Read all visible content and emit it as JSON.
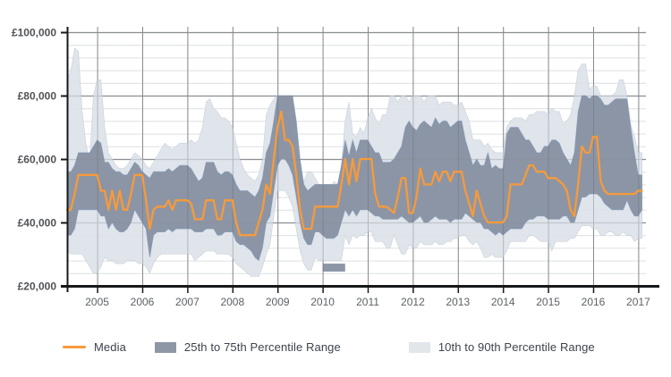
{
  "page": {
    "background": "#ffffff"
  },
  "chart": {
    "y_axis": {
      "tick_labels": [
        "£100,000",
        "£80,000",
        "£60,000",
        "£40,000",
        "£20,000"
      ],
      "tick_values_thousands": [
        100,
        80,
        60,
        40,
        20
      ],
      "minor_step_thousands": 4
    },
    "x_axis": {
      "tick_labels": [
        "2005",
        "2006",
        "2007",
        "2008",
        "2009",
        "2010",
        "2011",
        "2012",
        "2013",
        "2014",
        "2015",
        "2016",
        "2017"
      ]
    },
    "colors": {
      "median_line": "#f79a3b",
      "band_25_75": "#8790a1",
      "band_25_75_edge": "#6f94bd",
      "band_10_90": "#dde2e9",
      "grid_minor": "#dcdfe2",
      "grid_major": "#8c8f93",
      "grid_year": "#9a9ea3",
      "axis": "#17181a",
      "y_label": "#4f5357",
      "x_label": "#5d6166",
      "legend_text": "#3c434d"
    },
    "legend": {
      "items": [
        {
          "label": "Media",
          "swatch": "line",
          "color": "#f79a3b"
        },
        {
          "label": "25th to 75th Percentile Range",
          "swatch": "box",
          "color": "#8e97a6"
        },
        {
          "label": "10th to 90th Percentile Range",
          "swatch": "box",
          "color": "#e2e6eb"
        }
      ]
    }
  },
  "chart_data": {
    "type": "line",
    "title": "",
    "unit": "GBP thousands per annum",
    "frequency": "monthly",
    "start_month": "2004-05",
    "end_month": "2017-02",
    "ylim_thousands": [
      20,
      100
    ],
    "x_ticks": [
      2005,
      2006,
      2007,
      2008,
      2009,
      2010,
      2011,
      2012,
      2013,
      2014,
      2015,
      2016,
      2017
    ],
    "grid": "major and minor horizontal, yearly vertical",
    "legend_position": "bottom",
    "series": [
      {
        "name": "Media",
        "role": "median",
        "color": "#f79a3b",
        "values": [
          44,
          44,
          49,
          55,
          55,
          55,
          55,
          55,
          55,
          50,
          50,
          44,
          50,
          44,
          50,
          44,
          44,
          49,
          55,
          55,
          55,
          47,
          38,
          44,
          45,
          45,
          45,
          47,
          44,
          47,
          47,
          47,
          47,
          46,
          41,
          41,
          41,
          47,
          47,
          47,
          41,
          41,
          47,
          47,
          47,
          40,
          36,
          36,
          36,
          36,
          36,
          40,
          44,
          52,
          49,
          60,
          70,
          75,
          66,
          66,
          64,
          55,
          44,
          38,
          38,
          38,
          45,
          45,
          45,
          45,
          45,
          45,
          45,
          52,
          60,
          52,
          60,
          53,
          60,
          60,
          60,
          60,
          49,
          45,
          45,
          45,
          44,
          43,
          48,
          54,
          54,
          43,
          43,
          48,
          57,
          52,
          52,
          52,
          56,
          53,
          56,
          56,
          53,
          56,
          56,
          56,
          50,
          46,
          42,
          50,
          46,
          42,
          40,
          40,
          40,
          40,
          40,
          42,
          52,
          52,
          52,
          52,
          55,
          58,
          58,
          56,
          56,
          56,
          54,
          54,
          54,
          53,
          52,
          50,
          44,
          42,
          52,
          64,
          62,
          62,
          67,
          67,
          53,
          50,
          49,
          49,
          49,
          49,
          49,
          49,
          49,
          49,
          50,
          50
        ]
      },
      {
        "name": "25th Percentile",
        "role": "band_lower_25_75",
        "values": [
          36,
          36,
          38,
          44,
          44,
          44,
          44,
          44,
          44,
          42,
          42,
          38,
          40,
          38,
          37,
          37,
          38,
          40,
          44,
          42,
          40,
          38,
          29,
          36,
          37,
          37,
          37,
          38,
          37,
          38,
          38,
          38,
          38,
          38,
          37,
          37,
          37,
          38,
          38,
          38,
          36,
          36,
          37,
          37,
          37,
          34,
          33,
          33,
          32,
          31,
          29,
          28,
          32,
          40,
          42,
          50,
          58,
          60,
          60,
          58,
          55,
          48,
          40,
          35,
          33,
          33,
          37,
          37,
          36,
          35,
          35,
          35,
          36,
          40,
          44,
          42,
          44,
          42,
          44,
          44,
          44,
          43,
          42,
          42,
          41,
          41,
          41,
          41,
          41,
          42,
          41,
          40,
          40,
          41,
          42,
          40,
          40,
          41,
          42,
          41,
          41,
          41,
          40,
          41,
          41,
          41,
          43,
          42,
          41,
          40,
          40,
          38,
          38,
          37,
          36,
          37,
          36,
          37,
          38,
          38,
          38,
          38,
          40,
          41,
          41,
          42,
          42,
          42,
          41,
          41,
          41,
          41,
          42,
          42,
          40,
          40,
          44,
          48,
          48,
          49,
          49,
          49,
          48,
          46,
          45,
          44,
          44,
          44,
          44,
          47,
          44,
          42,
          42,
          44
        ]
      },
      {
        "name": "75th Percentile",
        "role": "band_upper_25_75",
        "values": [
          56,
          56,
          58,
          62,
          62,
          62,
          62,
          64,
          66,
          65,
          59,
          59,
          57,
          56,
          56,
          55,
          55,
          57,
          59,
          58,
          56,
          55,
          54,
          56,
          56,
          56,
          56,
          57,
          56,
          57,
          58,
          58,
          58,
          57,
          55,
          53,
          54,
          59,
          59,
          59,
          56,
          55,
          56,
          56,
          55,
          52,
          50,
          50,
          50,
          49,
          48,
          50,
          54,
          62,
          65,
          72,
          80,
          80,
          80,
          80,
          80,
          72,
          60,
          52,
          50,
          51,
          52,
          52,
          52,
          52,
          52,
          52,
          52,
          58,
          66,
          61,
          66,
          62,
          66,
          66,
          66,
          64,
          62,
          62,
          59,
          59,
          59,
          60,
          62,
          64,
          70,
          72,
          70,
          69,
          71,
          72,
          71,
          70,
          73,
          71,
          72,
          72,
          70,
          71,
          72,
          72,
          66,
          62,
          58,
          60,
          58,
          58,
          62,
          57,
          58,
          57,
          57,
          68,
          70,
          70,
          70,
          68,
          66,
          66,
          64,
          62,
          62,
          64,
          64,
          66,
          66,
          65,
          62,
          60,
          58,
          62,
          75,
          80,
          80,
          79,
          80,
          80,
          79,
          77,
          77,
          78,
          79,
          79,
          79,
          79,
          70,
          62,
          55,
          55
        ]
      },
      {
        "name": "10th Percentile",
        "role": "band_lower_10_90",
        "values": [
          31,
          30,
          30,
          30,
          30,
          28,
          26,
          24,
          24,
          26,
          29,
          28,
          28,
          27,
          27,
          27,
          28,
          28,
          28,
          27,
          27,
          26,
          24,
          27,
          29,
          30,
          30,
          30,
          30,
          30,
          30,
          30,
          30,
          30,
          28,
          29,
          30,
          31,
          31,
          31,
          30,
          30,
          30,
          30,
          29,
          27,
          26,
          25,
          24,
          23,
          23,
          23,
          26,
          30,
          33,
          42,
          50,
          50,
          50,
          48,
          45,
          38,
          31,
          27,
          25,
          25,
          29,
          28,
          28,
          28,
          28,
          28,
          28,
          28,
          36,
          33,
          36,
          35,
          36,
          36,
          37,
          37,
          34,
          34,
          34,
          32,
          32,
          36,
          33,
          30,
          30,
          33,
          32,
          32,
          34,
          33,
          33,
          33,
          34,
          33,
          33,
          34,
          34,
          35,
          35,
          36,
          36,
          34,
          33,
          34,
          32,
          29,
          29,
          30,
          29,
          29,
          29,
          31,
          34,
          34,
          34,
          34,
          34,
          36,
          36,
          35,
          34,
          34,
          34,
          31,
          34,
          34,
          34,
          34,
          35,
          35,
          37,
          39,
          39,
          39,
          38,
          38,
          36,
          36,
          37,
          37,
          36,
          36,
          37,
          36,
          36,
          34,
          35,
          35
        ]
      },
      {
        "name": "90th Percentile",
        "role": "band_upper_10_90",
        "values": [
          85,
          88,
          95,
          94,
          75,
          65,
          59,
          80,
          85,
          85,
          70,
          62,
          60,
          58,
          57,
          57,
          58,
          60,
          62,
          61,
          60,
          58,
          57,
          59,
          61,
          63,
          65,
          64,
          63,
          64,
          65,
          65,
          65,
          66,
          65,
          66,
          70,
          78,
          79,
          76,
          75,
          73,
          73,
          72,
          70,
          65,
          60,
          57,
          55,
          54,
          53,
          55,
          60,
          74,
          77,
          79,
          80,
          80,
          80,
          72,
          62,
          56,
          51,
          53,
          56,
          56,
          54,
          52,
          50,
          52,
          51,
          53,
          52,
          58,
          72,
          78,
          68,
          67,
          70,
          68,
          73,
          76,
          73,
          71,
          74,
          74,
          80,
          80,
          78,
          80,
          80,
          78,
          80,
          80,
          80,
          78,
          80,
          80,
          80,
          77,
          78,
          78,
          78,
          77,
          77,
          78,
          75,
          72,
          66,
          66,
          66,
          64,
          65,
          63,
          62,
          62,
          62,
          70,
          72,
          73,
          73,
          73,
          72,
          74,
          74,
          75,
          75,
          75,
          74,
          76,
          75,
          75,
          71,
          72,
          74,
          80,
          88,
          90,
          90,
          82,
          83,
          83,
          80,
          80,
          80,
          80,
          81,
          85,
          85,
          80,
          71,
          67,
          62,
          62
        ]
      }
    ],
    "detached_band_fragment": {
      "start_month": "2010-01",
      "end_month": "2010-07",
      "low_thousands": 24.5,
      "high_thousands": 27
    }
  }
}
